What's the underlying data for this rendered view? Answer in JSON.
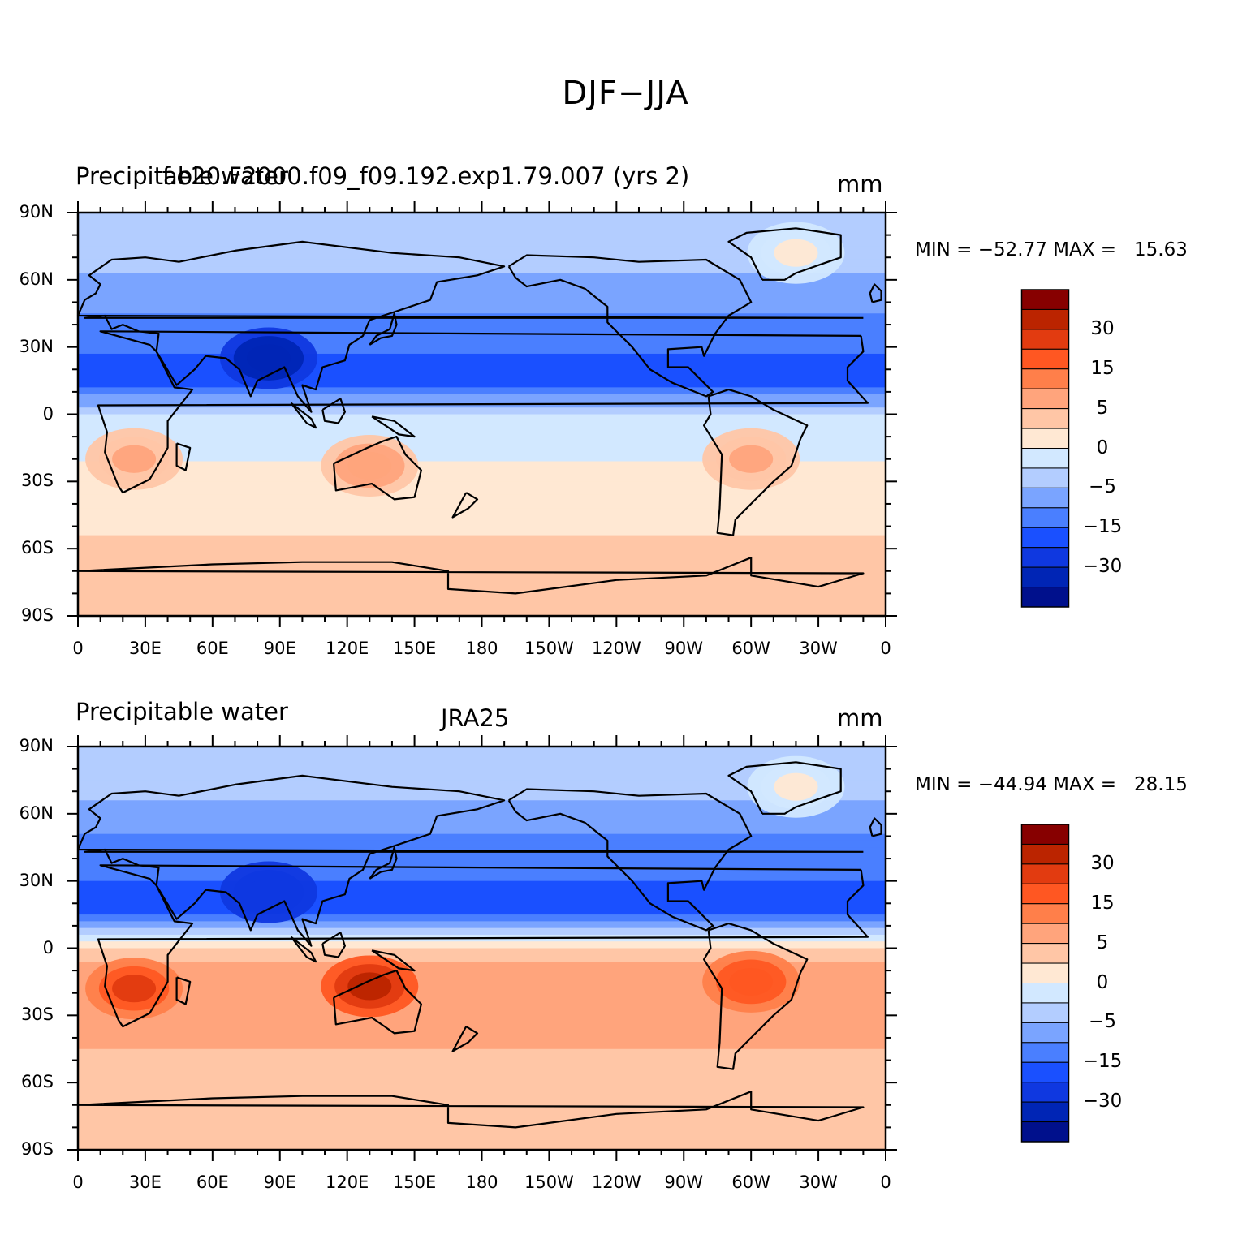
{
  "main_title": "DJF−JJA",
  "panels": [
    {
      "left_title": "Precipitable water",
      "center_title": "f.e20.F2000.f09_f09.192.exp1.79.007 (yrs 2)",
      "units": "mm",
      "stats": "MIN = −52.77 MAX =   15.63",
      "colorbar": {
        "colors": [
          "#870000",
          "#bb2400",
          "#e23b10",
          "#ff5722",
          "#ff7f4a",
          "#ffa47c",
          "#ffc6a6",
          "#ffe8d3",
          "#d2e8ff",
          "#b3cdff",
          "#7aa4ff",
          "#4a7fff",
          "#1a50ff",
          "#0f38e0",
          "#0025b5",
          "#00108c"
        ],
        "labels": [
          "30",
          "15",
          "5",
          "0",
          "−5",
          "−15",
          "−30"
        ]
      }
    },
    {
      "left_title": "Precipitable water",
      "center_title": "JRA25",
      "units": "mm",
      "stats": "MIN = −44.94 MAX =   28.15",
      "colorbar": {
        "colors": [
          "#870000",
          "#bb2400",
          "#e23b10",
          "#ff5722",
          "#ff7f4a",
          "#ffa47c",
          "#ffc6a6",
          "#ffe8d3",
          "#d2e8ff",
          "#b3cdff",
          "#7aa4ff",
          "#4a7fff",
          "#1a50ff",
          "#0f38e0",
          "#0025b5",
          "#00108c"
        ],
        "labels": [
          "30",
          "15",
          "5",
          "0",
          "−5",
          "−15",
          "−30"
        ]
      }
    }
  ],
  "axes": {
    "y_ticks": [
      "90N",
      "60N",
      "30N",
      "0",
      "30S",
      "60S",
      "90S"
    ],
    "x_ticks": [
      "0",
      "30E",
      "60E",
      "90E",
      "120E",
      "150E",
      "180",
      "150W",
      "120W",
      "90W",
      "60W",
      "30W",
      "0"
    ]
  },
  "chart_data": [
    {
      "type": "heatmap",
      "title": "f.e20.F2000.f09_f09.192.exp1.79.007 (yrs 2)",
      "subtitle": "Precipitable water",
      "units": "mm",
      "min": -52.77,
      "max": 15.63,
      "levels": [
        -40,
        -35,
        -30,
        -25,
        -20,
        -15,
        -10,
        -5,
        0,
        5,
        10,
        15,
        20,
        25,
        30
      ],
      "xlim": [
        0,
        360
      ],
      "ylim": [
        -90,
        90
      ],
      "zonal_pattern": [
        {
          "lat": 75,
          "value": -12
        },
        {
          "lat": 45,
          "value": -20
        },
        {
          "lat": 15,
          "value": -28
        },
        {
          "lat": 0,
          "value": -10
        },
        {
          "lat": -15,
          "value": -6
        },
        {
          "lat": -30,
          "value": -4
        },
        {
          "lat": -45,
          "value": -2
        },
        {
          "lat": -60,
          "value": 1
        },
        {
          "lat": -80,
          "value": 2
        }
      ],
      "regional_features": [
        {
          "name": "southern Africa",
          "lon": 25,
          "lat": -20,
          "value": 8
        },
        {
          "name": "Australia",
          "lon": 130,
          "lat": -23,
          "value": 9
        },
        {
          "name": "South America",
          "lon": 300,
          "lat": -20,
          "value": 6
        },
        {
          "name": "Bay of Bengal / Tibet",
          "lon": 85,
          "lat": 25,
          "value": -40
        },
        {
          "name": "Greenland",
          "lon": 320,
          "lat": 72,
          "value": -3
        }
      ]
    },
    {
      "type": "heatmap",
      "title": "JRA25",
      "subtitle": "Precipitable water",
      "units": "mm",
      "min": -44.94,
      "max": 28.15,
      "levels": [
        -40,
        -35,
        -30,
        -25,
        -20,
        -15,
        -10,
        -5,
        0,
        5,
        10,
        15,
        20,
        25,
        30
      ],
      "xlim": [
        0,
        360
      ],
      "ylim": [
        -90,
        90
      ],
      "zonal_pattern": [
        {
          "lat": 75,
          "value": -12
        },
        {
          "lat": 45,
          "value": -22
        },
        {
          "lat": 15,
          "value": -28
        },
        {
          "lat": 0,
          "value": 2
        },
        {
          "lat": -15,
          "value": 10
        },
        {
          "lat": -30,
          "value": 9
        },
        {
          "lat": -45,
          "value": 5
        },
        {
          "lat": -60,
          "value": 3
        },
        {
          "lat": -80,
          "value": 1
        }
      ],
      "regional_features": [
        {
          "name": "southern Africa",
          "lon": 25,
          "lat": -18,
          "value": 20
        },
        {
          "name": "Australia",
          "lon": 130,
          "lat": -17,
          "value": 25
        },
        {
          "name": "South America",
          "lon": 300,
          "lat": -15,
          "value": 18
        },
        {
          "name": "Bay of Bengal / Tibet",
          "lon": 85,
          "lat": 25,
          "value": -35
        },
        {
          "name": "Greenland",
          "lon": 320,
          "lat": 72,
          "value": -3
        }
      ]
    }
  ]
}
